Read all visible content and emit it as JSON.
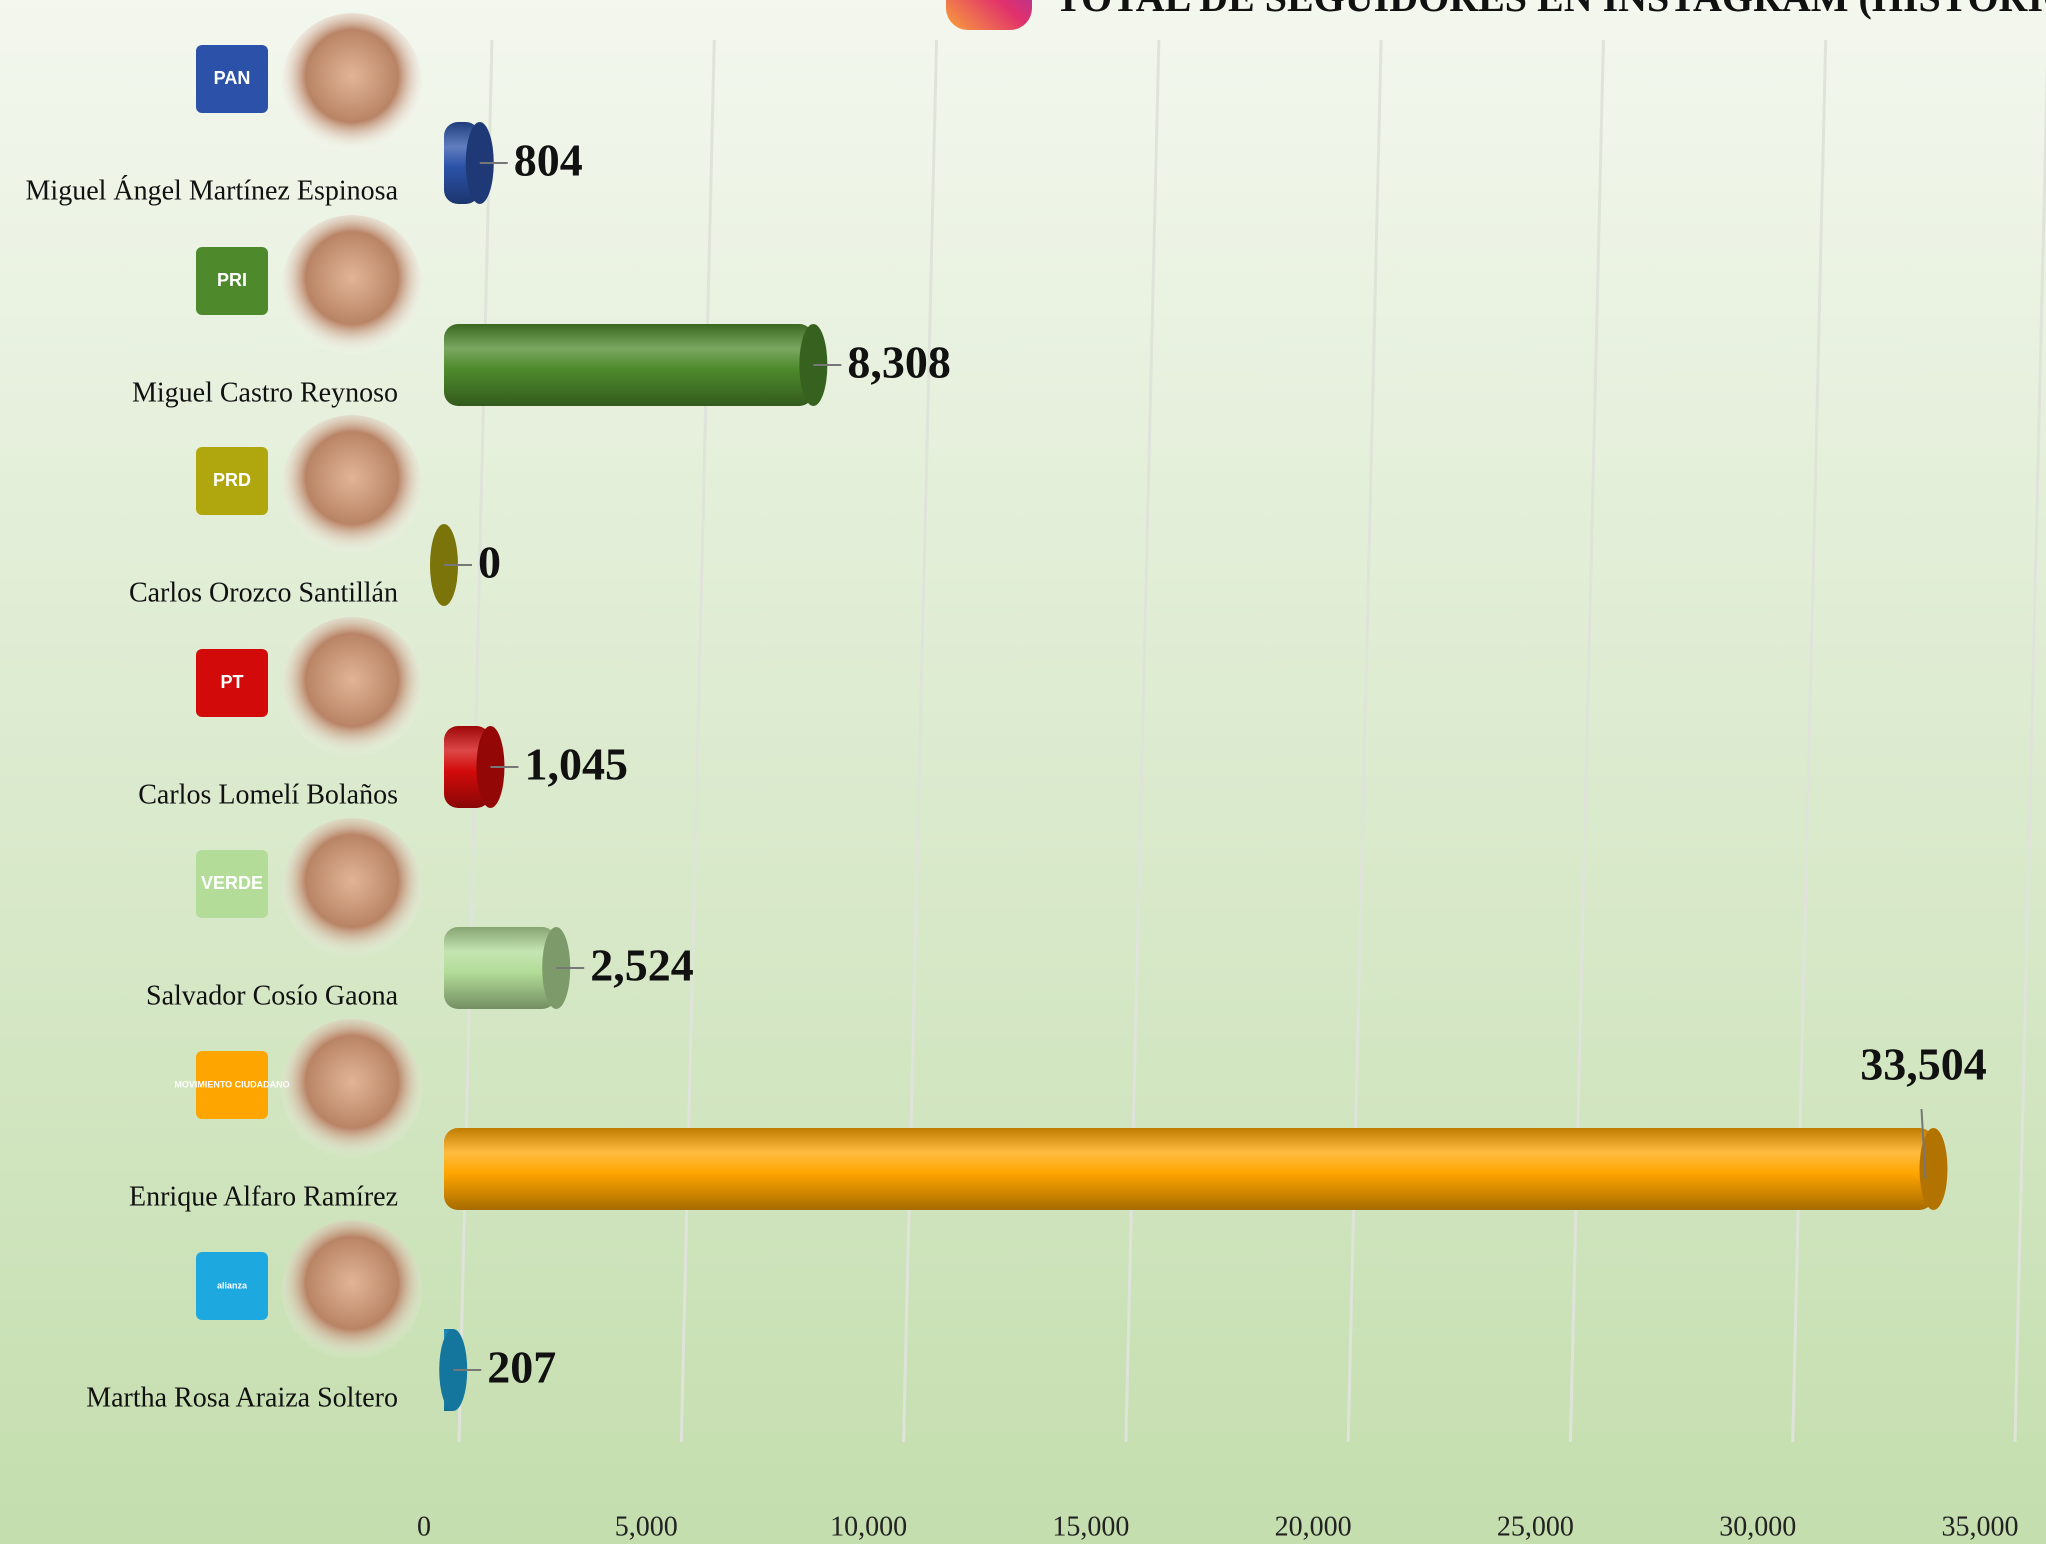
{
  "chart_data": {
    "type": "bar",
    "orientation": "horizontal",
    "title": "TOTAL DE SEGUIDORES EN INSTAGRAM (HISTÓRICO)",
    "categories": [
      "Miguel Ángel Martínez Espinosa",
      "Miguel Castro Reynoso",
      "Carlos Orozco Santillán",
      "Carlos Lomelí Bolaños",
      "Salvador Cosío Gaona",
      "Enrique Alfaro Ramírez",
      "Martha Rosa Araiza Soltero"
    ],
    "party_logos": [
      "PAN",
      "PRI",
      "PRD",
      "PT",
      "VERDE",
      "MOVIMIENTO CIUDADANO",
      "alianza"
    ],
    "values": [
      804,
      8308,
      0,
      1045,
      2524,
      33504,
      207
    ],
    "value_labels": [
      "804",
      "8,308",
      "0",
      "1,045",
      "2,524",
      "33,504",
      "207"
    ],
    "colors": [
      "#2b52a8",
      "#4e8a2c",
      "#b0a60e",
      "#d20a0a",
      "#b2dc98",
      "#ffa500",
      "#1ea8e0"
    ],
    "xlim": [
      0,
      35000
    ],
    "xticks": [
      0,
      {
        "value": 5000,
        "label": "5,000"
      },
      {
        "value": 10000,
        "label": "10,000"
      },
      {
        "value": 15000,
        "label": "15,000"
      },
      {
        "value": 20000,
        "label": "20,000"
      },
      {
        "value": 25000,
        "label": "25,000"
      },
      {
        "value": 30000,
        "label": "30,000"
      },
      {
        "value": 35000,
        "label": "35,000"
      }
    ],
    "grid": true
  }
}
